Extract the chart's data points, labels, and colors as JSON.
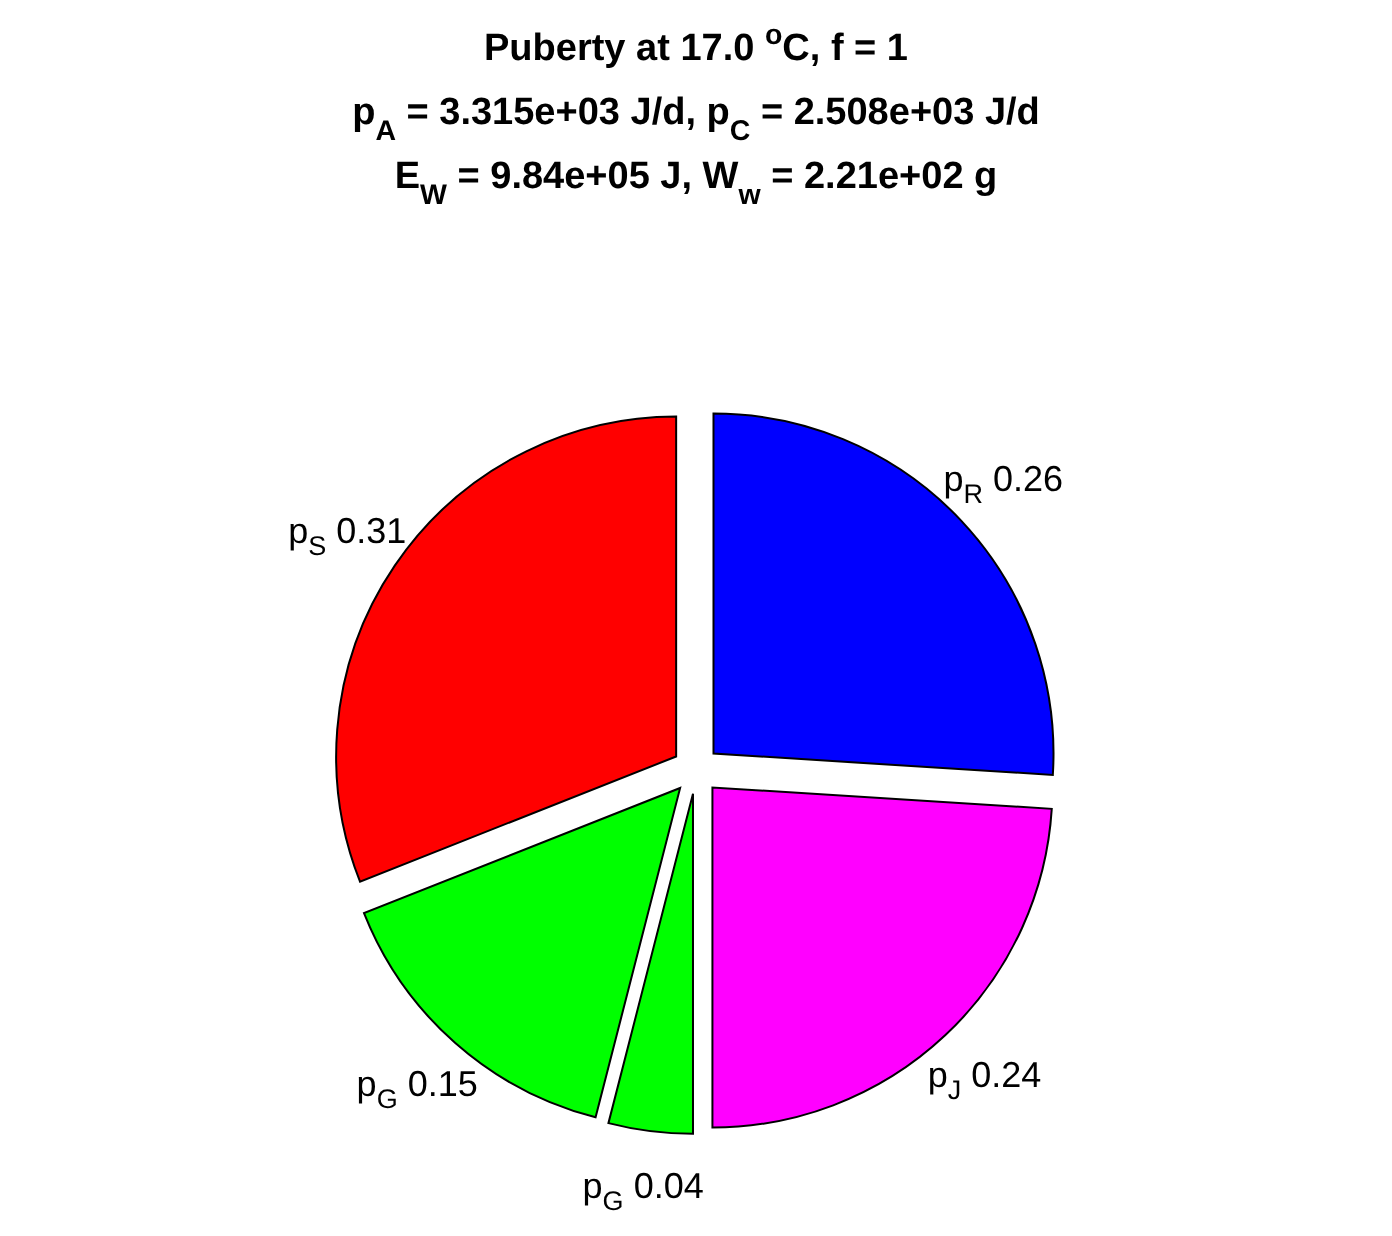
{
  "chart_data": {
    "type": "pie",
    "title": "Puberty at 17.0 $^{o}$C, f = 1",
    "subtitle": "p$_{A}$ = 3.315e+03 J/d,  p$_{C}$ = 2.508e+03 J/d\nE$_{W}$ = 9.84e+05 J, W$_{w}$ = 2.21e+02 g",
    "categories": [
      "p$_{R}$",
      "p$_{J}$",
      "p$_{G}$",
      "p$_{G}$",
      "p$_{S}$"
    ],
    "values": [
      0.26,
      0.24,
      0.04,
      0.15,
      0.31
    ],
    "colors": [
      "#0000ff",
      "#ff00ff",
      "#00ff00",
      "#00ff00",
      "#ff0000"
    ],
    "data_labels": true
  }
}
